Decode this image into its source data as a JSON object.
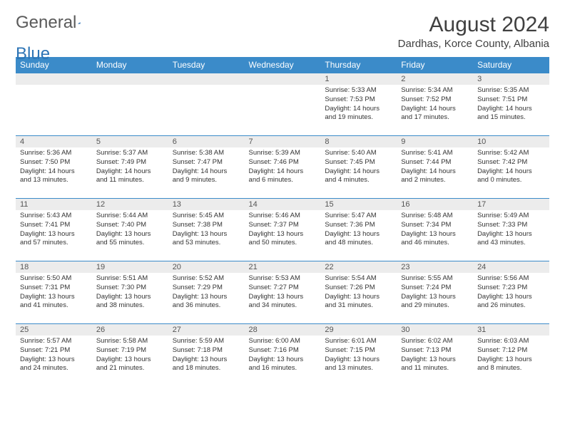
{
  "brand": {
    "part1": "General",
    "part2": "Blue"
  },
  "title": "August 2024",
  "location": "Dardhas, Korce County, Albania",
  "colors": {
    "header_bg": "#3b8bc9",
    "header_text": "#ffffff",
    "daynum_bg": "#ececec",
    "border": "#3b8bc9"
  },
  "weekdays": [
    "Sunday",
    "Monday",
    "Tuesday",
    "Wednesday",
    "Thursday",
    "Friday",
    "Saturday"
  ],
  "grid": {
    "first_weekday_index": 4,
    "num_weeks": 5
  },
  "days": [
    {
      "n": 1,
      "sunrise": "5:33 AM",
      "sunset": "7:53 PM",
      "daylight": "14 hours and 19 minutes."
    },
    {
      "n": 2,
      "sunrise": "5:34 AM",
      "sunset": "7:52 PM",
      "daylight": "14 hours and 17 minutes."
    },
    {
      "n": 3,
      "sunrise": "5:35 AM",
      "sunset": "7:51 PM",
      "daylight": "14 hours and 15 minutes."
    },
    {
      "n": 4,
      "sunrise": "5:36 AM",
      "sunset": "7:50 PM",
      "daylight": "14 hours and 13 minutes."
    },
    {
      "n": 5,
      "sunrise": "5:37 AM",
      "sunset": "7:49 PM",
      "daylight": "14 hours and 11 minutes."
    },
    {
      "n": 6,
      "sunrise": "5:38 AM",
      "sunset": "7:47 PM",
      "daylight": "14 hours and 9 minutes."
    },
    {
      "n": 7,
      "sunrise": "5:39 AM",
      "sunset": "7:46 PM",
      "daylight": "14 hours and 6 minutes."
    },
    {
      "n": 8,
      "sunrise": "5:40 AM",
      "sunset": "7:45 PM",
      "daylight": "14 hours and 4 minutes."
    },
    {
      "n": 9,
      "sunrise": "5:41 AM",
      "sunset": "7:44 PM",
      "daylight": "14 hours and 2 minutes."
    },
    {
      "n": 10,
      "sunrise": "5:42 AM",
      "sunset": "7:42 PM",
      "daylight": "14 hours and 0 minutes."
    },
    {
      "n": 11,
      "sunrise": "5:43 AM",
      "sunset": "7:41 PM",
      "daylight": "13 hours and 57 minutes."
    },
    {
      "n": 12,
      "sunrise": "5:44 AM",
      "sunset": "7:40 PM",
      "daylight": "13 hours and 55 minutes."
    },
    {
      "n": 13,
      "sunrise": "5:45 AM",
      "sunset": "7:38 PM",
      "daylight": "13 hours and 53 minutes."
    },
    {
      "n": 14,
      "sunrise": "5:46 AM",
      "sunset": "7:37 PM",
      "daylight": "13 hours and 50 minutes."
    },
    {
      "n": 15,
      "sunrise": "5:47 AM",
      "sunset": "7:36 PM",
      "daylight": "13 hours and 48 minutes."
    },
    {
      "n": 16,
      "sunrise": "5:48 AM",
      "sunset": "7:34 PM",
      "daylight": "13 hours and 46 minutes."
    },
    {
      "n": 17,
      "sunrise": "5:49 AM",
      "sunset": "7:33 PM",
      "daylight": "13 hours and 43 minutes."
    },
    {
      "n": 18,
      "sunrise": "5:50 AM",
      "sunset": "7:31 PM",
      "daylight": "13 hours and 41 minutes."
    },
    {
      "n": 19,
      "sunrise": "5:51 AM",
      "sunset": "7:30 PM",
      "daylight": "13 hours and 38 minutes."
    },
    {
      "n": 20,
      "sunrise": "5:52 AM",
      "sunset": "7:29 PM",
      "daylight": "13 hours and 36 minutes."
    },
    {
      "n": 21,
      "sunrise": "5:53 AM",
      "sunset": "7:27 PM",
      "daylight": "13 hours and 34 minutes."
    },
    {
      "n": 22,
      "sunrise": "5:54 AM",
      "sunset": "7:26 PM",
      "daylight": "13 hours and 31 minutes."
    },
    {
      "n": 23,
      "sunrise": "5:55 AM",
      "sunset": "7:24 PM",
      "daylight": "13 hours and 29 minutes."
    },
    {
      "n": 24,
      "sunrise": "5:56 AM",
      "sunset": "7:23 PM",
      "daylight": "13 hours and 26 minutes."
    },
    {
      "n": 25,
      "sunrise": "5:57 AM",
      "sunset": "7:21 PM",
      "daylight": "13 hours and 24 minutes."
    },
    {
      "n": 26,
      "sunrise": "5:58 AM",
      "sunset": "7:19 PM",
      "daylight": "13 hours and 21 minutes."
    },
    {
      "n": 27,
      "sunrise": "5:59 AM",
      "sunset": "7:18 PM",
      "daylight": "13 hours and 18 minutes."
    },
    {
      "n": 28,
      "sunrise": "6:00 AM",
      "sunset": "7:16 PM",
      "daylight": "13 hours and 16 minutes."
    },
    {
      "n": 29,
      "sunrise": "6:01 AM",
      "sunset": "7:15 PM",
      "daylight": "13 hours and 13 minutes."
    },
    {
      "n": 30,
      "sunrise": "6:02 AM",
      "sunset": "7:13 PM",
      "daylight": "13 hours and 11 minutes."
    },
    {
      "n": 31,
      "sunrise": "6:03 AM",
      "sunset": "7:12 PM",
      "daylight": "13 hours and 8 minutes."
    }
  ],
  "labels": {
    "sunrise": "Sunrise:",
    "sunset": "Sunset:",
    "daylight": "Daylight:"
  }
}
